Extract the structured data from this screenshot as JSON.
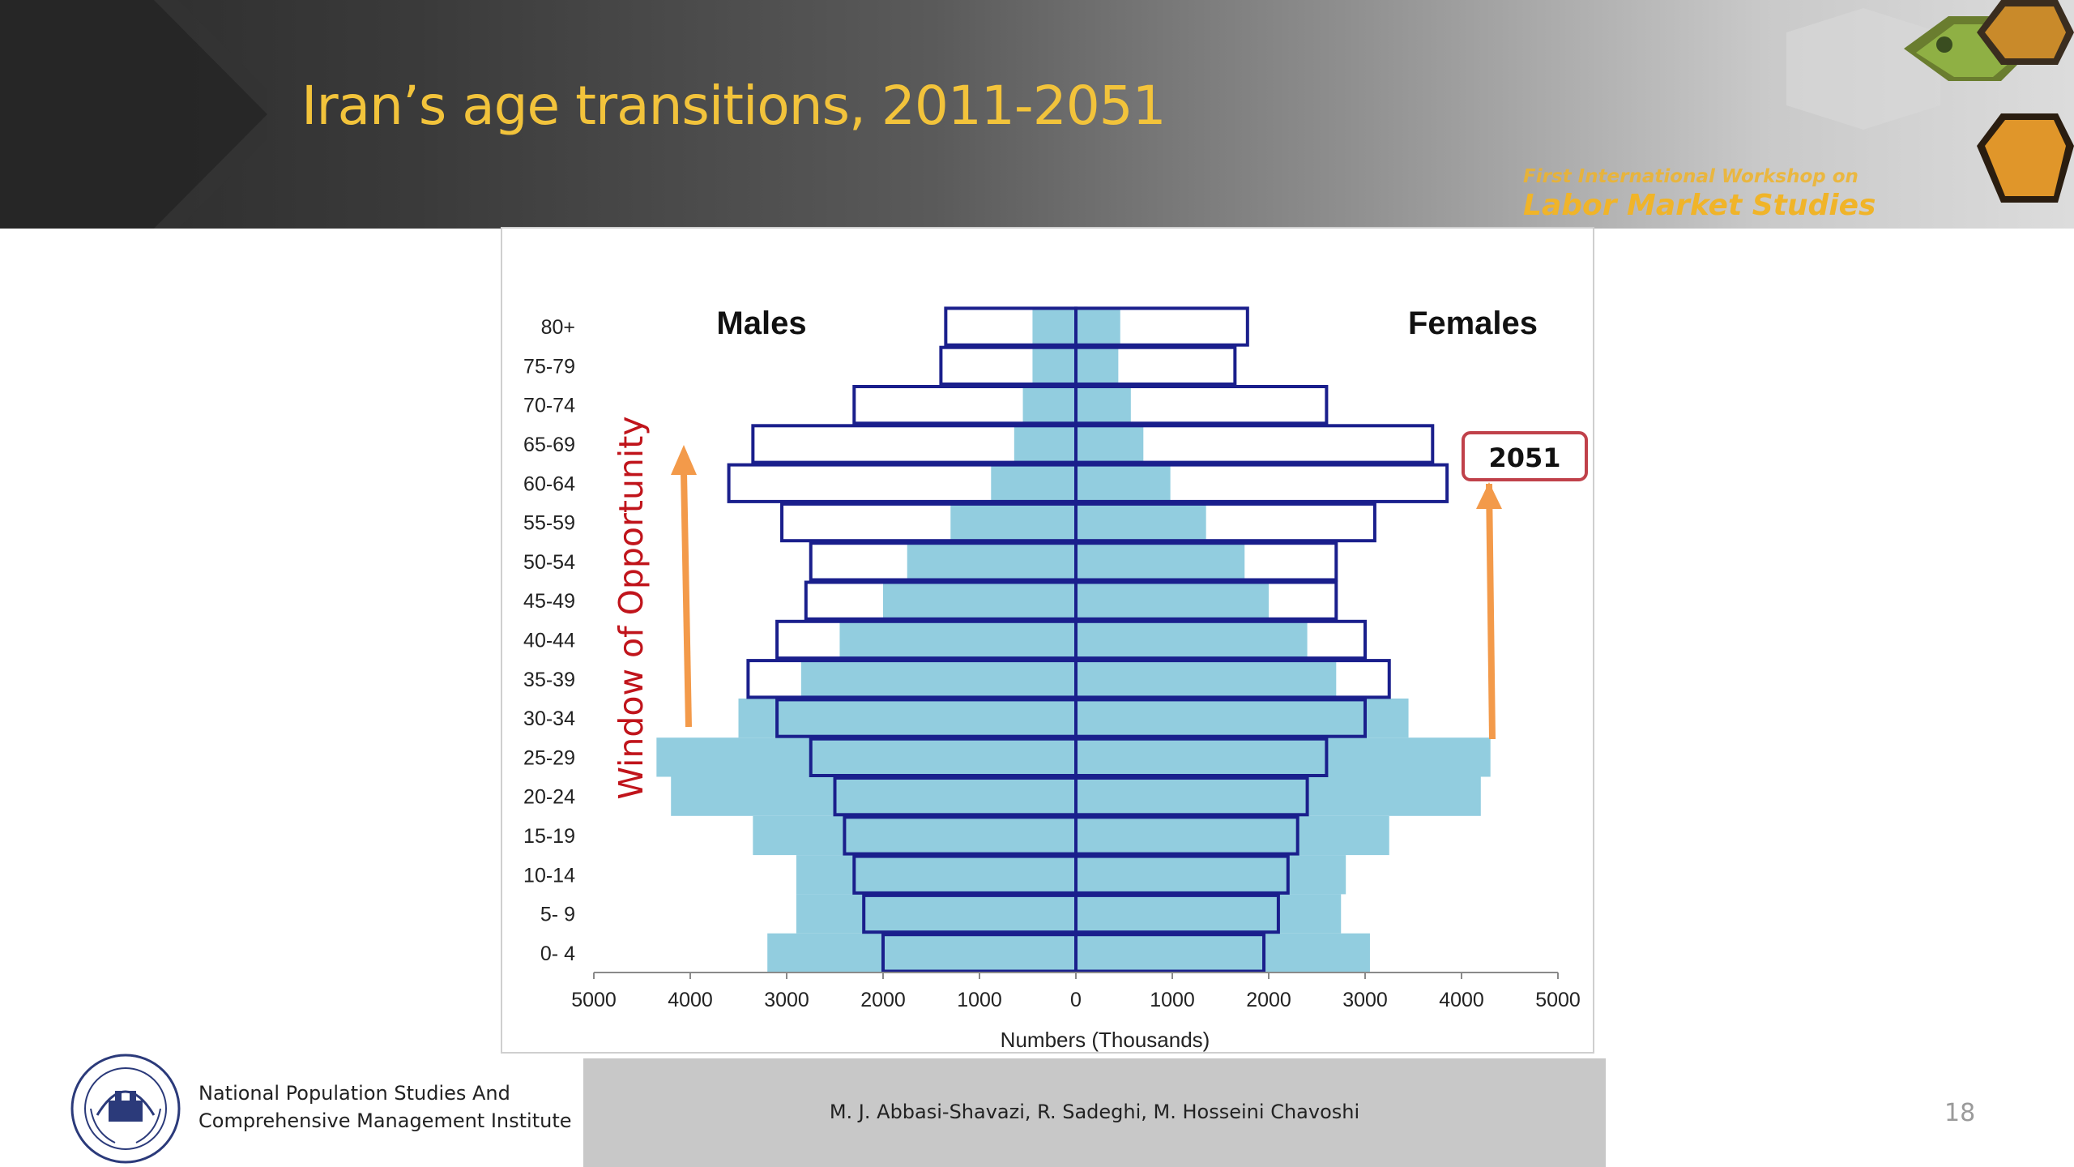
{
  "slide": {
    "title": "Iran’s age transitions, 2011-2051",
    "workshop_line1": "First International Workshop on",
    "workshop_line2": "Labor Market Studies",
    "page_number": "18"
  },
  "footer": {
    "institute_line1": "National Population Studies And",
    "institute_line2": "Comprehensive Management Institute",
    "authors": "M. J. Abbasi-Shavazi, R. Sadeghi, M. Hosseini Chavoshi"
  },
  "colors": {
    "header_title": "#f2c33b",
    "fill_2011": "#92cddf",
    "outline_2051": "#1a1f8c",
    "arrow": "#f39a4a",
    "window_text": "#c0141b",
    "badge_border": "#c0414a"
  },
  "chart_data": {
    "type": "population-pyramid",
    "xlabel": "Numbers (Thousands)",
    "left_label": "Males",
    "right_label": "Females",
    "xlim": [
      -5000,
      5000
    ],
    "x_ticks": [
      -5000,
      -4000,
      -3000,
      -2000,
      -1000,
      0,
      1000,
      2000,
      3000,
      4000,
      5000
    ],
    "x_tick_labels": [
      "5000",
      "4000",
      "3000",
      "2000",
      "1000",
      "0",
      "1000",
      "2000",
      "3000",
      "4000",
      "5000"
    ],
    "categories": [
      "0- 4",
      "5- 9",
      "10-14",
      "15-19",
      "20-24",
      "25-29",
      "30-34",
      "35-39",
      "40-44",
      "45-49",
      "50-54",
      "55-59",
      "60-64",
      "65-69",
      "70-74",
      "75-79",
      "80+"
    ],
    "series": [
      {
        "name": "2011",
        "style": "filled",
        "males": [
          3200,
          2900,
          2900,
          3350,
          4200,
          4350,
          3500,
          2850,
          2450,
          2000,
          1750,
          1300,
          880,
          640,
          550,
          450,
          450
        ],
        "females": [
          3050,
          2750,
          2800,
          3250,
          4200,
          4300,
          3450,
          2700,
          2400,
          2000,
          1750,
          1350,
          980,
          700,
          570,
          440,
          460
        ]
      },
      {
        "name": "2051",
        "style": "outline",
        "males": [
          2000,
          2200,
          2300,
          2400,
          2500,
          2750,
          3100,
          3400,
          3100,
          2800,
          2750,
          3050,
          3600,
          3350,
          2300,
          1400,
          1350
        ],
        "females": [
          1950,
          2100,
          2200,
          2300,
          2400,
          2600,
          3000,
          3250,
          3000,
          2700,
          2700,
          3100,
          3850,
          3700,
          2600,
          1650,
          1780
        ]
      }
    ],
    "annotations": {
      "window_label": "Window of Opportunity",
      "badge": "2051"
    }
  }
}
